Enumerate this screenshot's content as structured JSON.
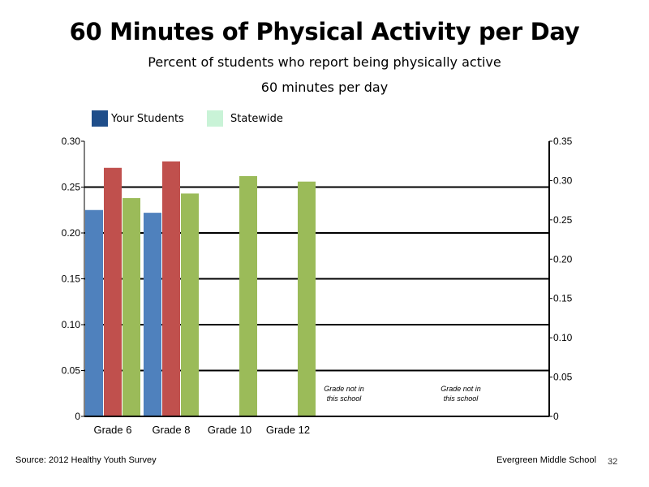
{
  "header": {
    "title": "60 Minutes of Physical Activity per Day",
    "subtitle_line1": "Percent of students who report being physically active",
    "subtitle_line2": "60 minutes per day"
  },
  "legend": [
    {
      "label": "Your Students",
      "color": "#1f4e8a"
    },
    {
      "label": "Statewide",
      "color": "#c9f3d7"
    }
  ],
  "footer": {
    "source": "Source: 2012 Healthy Youth Survey",
    "school": "Evergreen Middle School",
    "page_number": "32"
  },
  "chart_data": {
    "type": "bar",
    "categories": [
      "Grade 6",
      "Grade 8",
      "Grade 10",
      "Grade 12"
    ],
    "series": [
      {
        "color": "#4f81bd",
        "values": [
          0.225,
          0.222,
          null,
          null
        ]
      },
      {
        "color": "#c0504d",
        "values": [
          0.271,
          0.278,
          null,
          null
        ]
      },
      {
        "color": "#9bbb59",
        "values": [
          0.238,
          0.243,
          0.262,
          0.256
        ]
      }
    ],
    "ylim": [
      0,
      0.3
    ],
    "yticks": [
      "0",
      "0.05",
      "0.10",
      "0.15",
      "0.20",
      "0.25",
      "0.30"
    ],
    "ylim_right": [
      0,
      0.35
    ],
    "yticks_right": [
      "0",
      "0.05",
      "0.10",
      "0.15",
      "0.20",
      "0.25",
      "0.30",
      "0.35"
    ],
    "grid": true,
    "annotations": [
      {
        "text": "Grade not in this school",
        "line1": "Grade not in",
        "line2": "this school",
        "x_group": 4
      },
      {
        "text": "Grade not in this school",
        "line1": "Grade not in",
        "line2": "this school",
        "x_group": 6
      }
    ]
  }
}
